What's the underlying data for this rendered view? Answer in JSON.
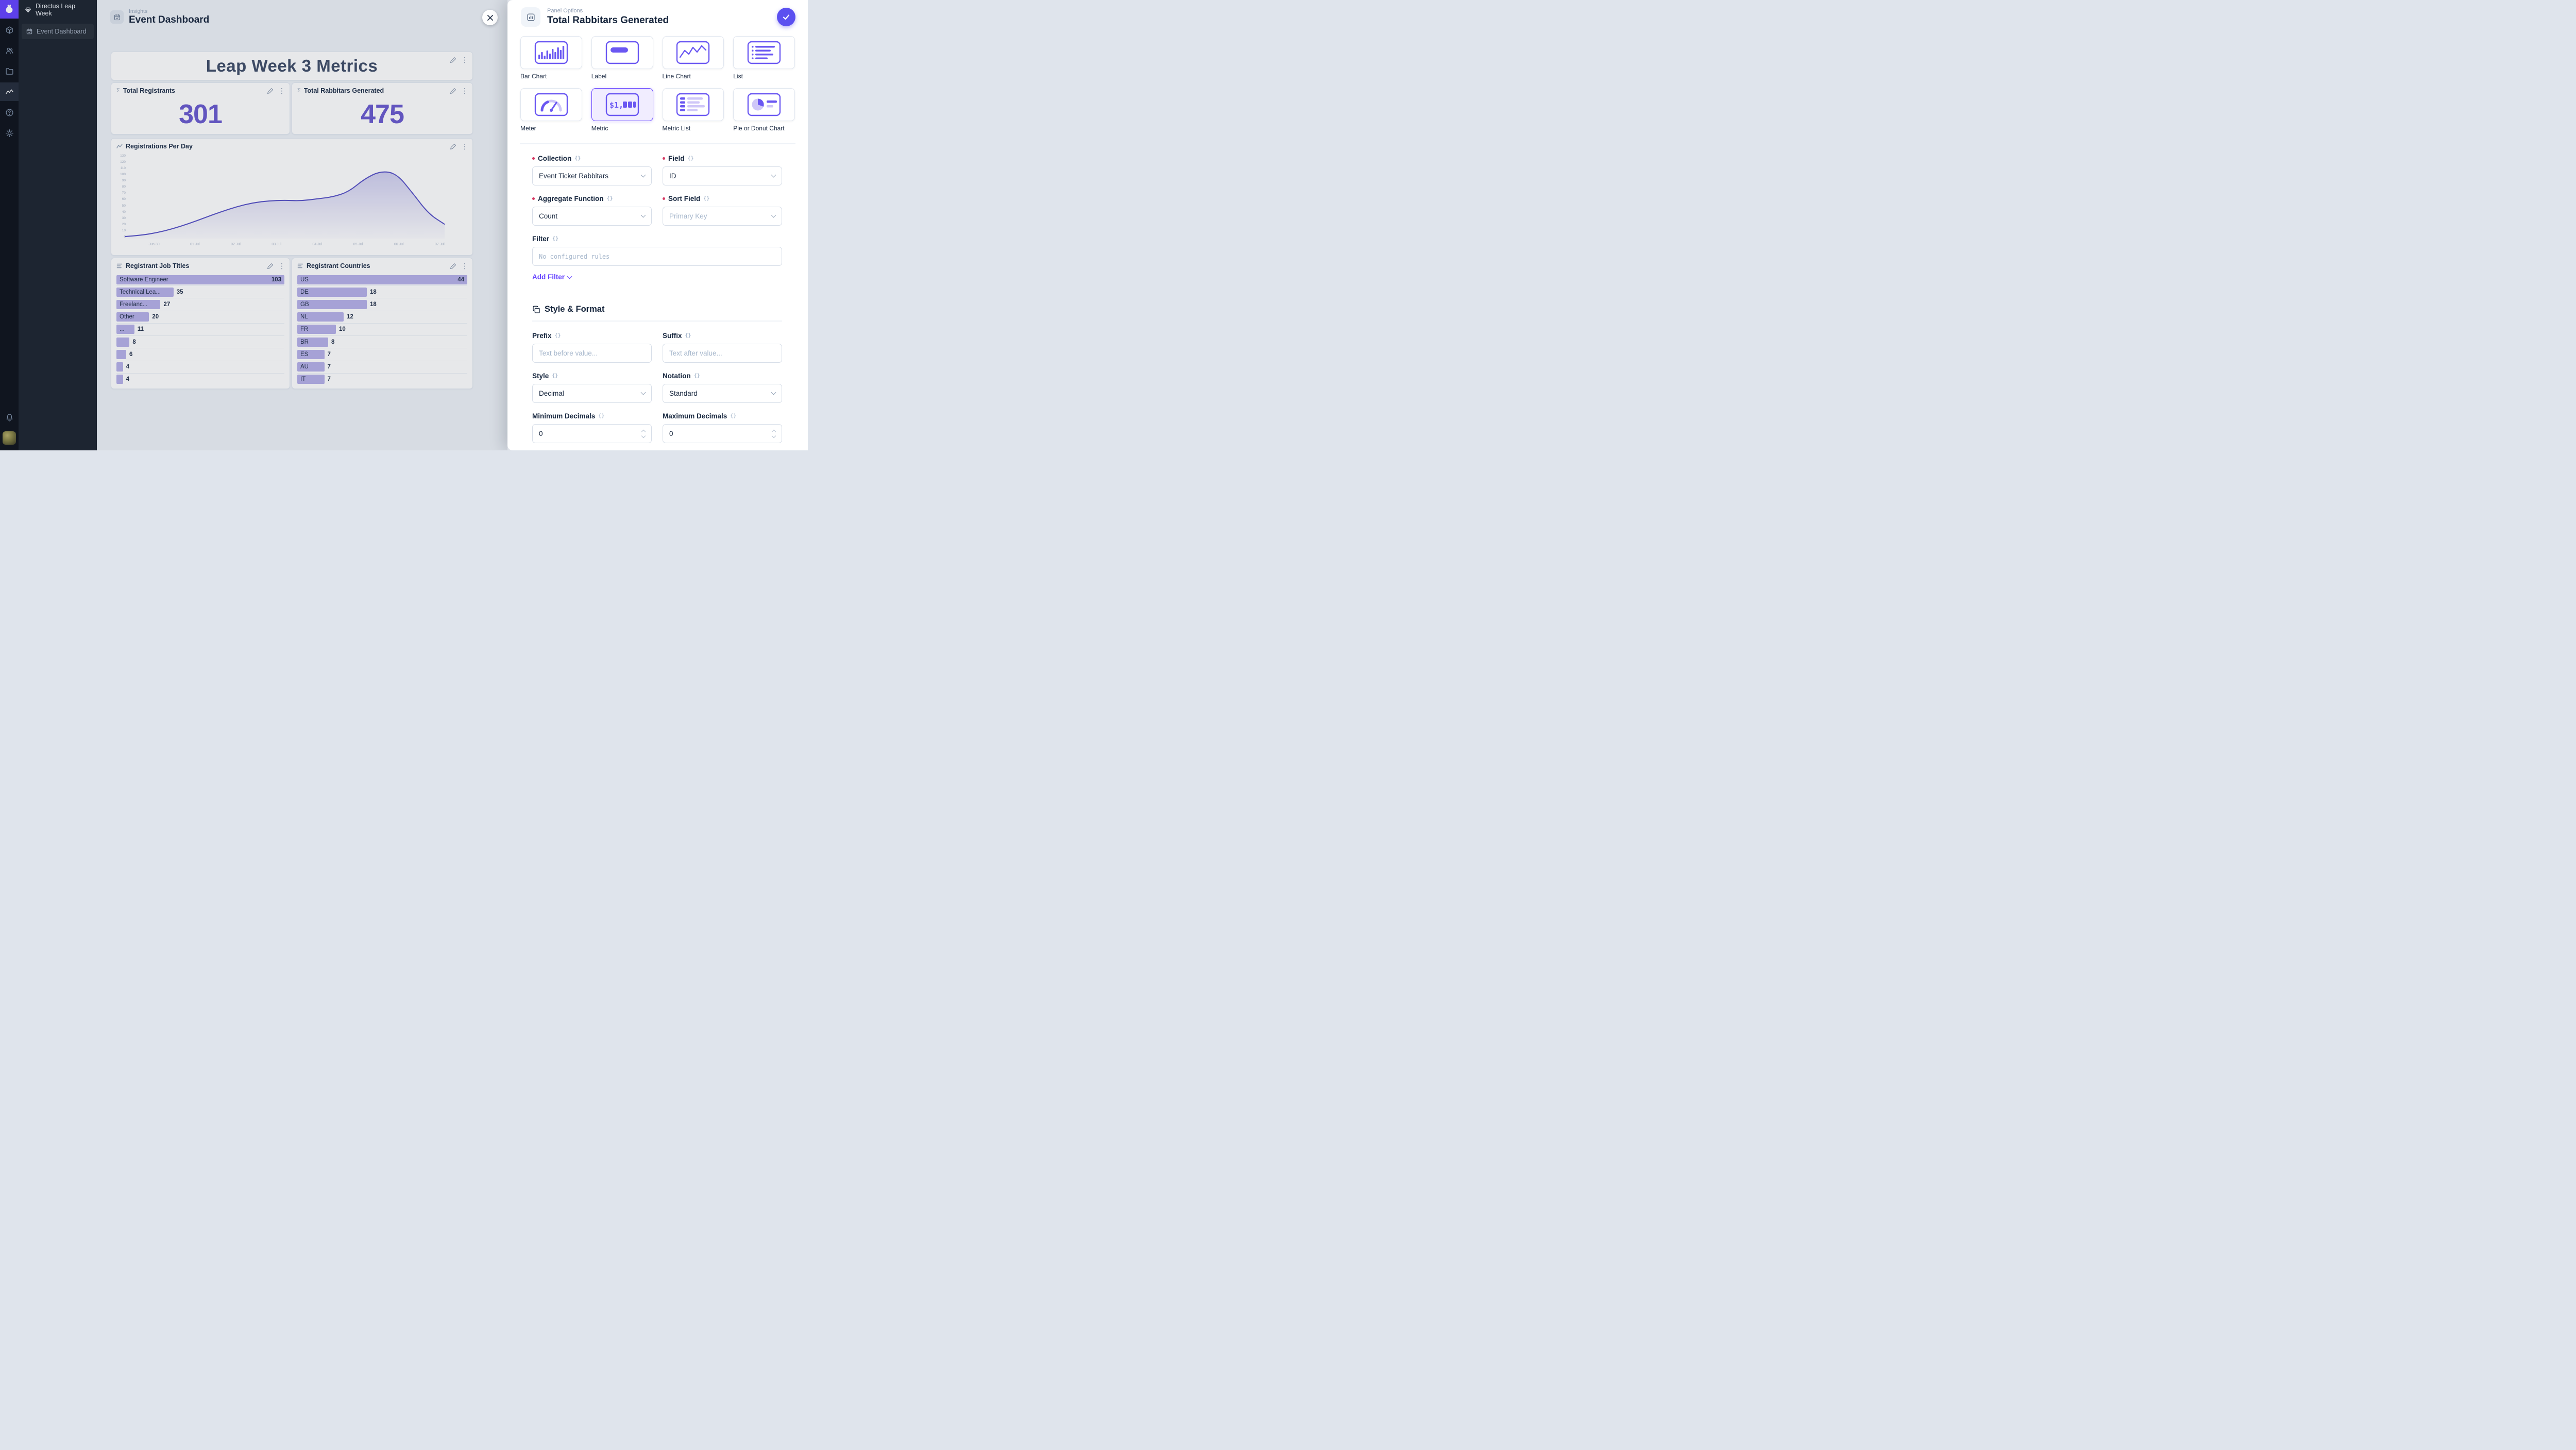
{
  "accent": "#6644ff",
  "module_bar": {
    "items": [
      {
        "name": "content-module",
        "icon": "box-icon",
        "active": false
      },
      {
        "name": "users-module",
        "icon": "users-icon",
        "active": false
      },
      {
        "name": "files-module",
        "icon": "folder-icon",
        "active": false
      },
      {
        "name": "insights-module",
        "icon": "insights-icon",
        "active": true
      },
      {
        "name": "docs-module",
        "icon": "help-icon",
        "active": false
      },
      {
        "name": "settings-module",
        "icon": "gear-icon",
        "active": false
      }
    ]
  },
  "nav": {
    "project_name": "Directus Leap Week",
    "items": [
      {
        "label": "Event Dashboard"
      }
    ]
  },
  "main": {
    "kicker": "Insights",
    "title": "Event Dashboard",
    "panels": {
      "headline": "Leap Week 3 Metrics",
      "registrants_title": "Total Registrants",
      "registrants_value": "301",
      "rabbitars_title": "Total Rabbitars Generated",
      "rabbitars_value": "475",
      "per_day_title": "Registrations Per Day",
      "job_titles_title": "Registrant Job Titles",
      "countries_title": "Registrant Countries"
    }
  },
  "chart_data": [
    {
      "type": "line",
      "title": "Registrations Per Day",
      "x_ticks": [
        "Jun 30",
        "01 Jul",
        "02 Jul",
        "03 Jul",
        "04 Jul",
        "05 Jul",
        "06 Jul",
        "07 Jul"
      ],
      "daily_values": {
        "Jun 30": 3,
        "01 Jul": 30,
        "02 Jul": 55,
        "03 Jul": 60,
        "04 Jul": 62,
        "05 Jul": 75,
        "06 Jul": 104,
        "07 Jul": 22
      },
      "curve": [
        3,
        5,
        9,
        15,
        23,
        32,
        41,
        49,
        55,
        58,
        59,
        58,
        61,
        64,
        72,
        92,
        104,
        100,
        70,
        38,
        22
      ],
      "ylim": [
        0,
        130
      ],
      "ytick_step": 10,
      "color": "#5a54c8",
      "legend": "none",
      "grid": "off"
    },
    {
      "type": "bar",
      "title": "Registrant Job Titles",
      "orientation": "horizontal",
      "rows": [
        {
          "label": "Software Engineer",
          "value": 103
        },
        {
          "label": "Technical Lea...",
          "value": 35
        },
        {
          "label": "Freelanc...",
          "value": 27
        },
        {
          "label": "Other",
          "value": 20
        },
        {
          "label": "...",
          "value": 11
        },
        {
          "label": "",
          "value": 8
        },
        {
          "label": "",
          "value": 6
        },
        {
          "label": "",
          "value": 4
        },
        {
          "label": "",
          "value": 4
        }
      ],
      "bar_color": "#b7b2e9"
    },
    {
      "type": "bar",
      "title": "Registrant Countries",
      "orientation": "horizontal",
      "rows": [
        {
          "label": "US",
          "value": 44
        },
        {
          "label": "DE",
          "value": 18
        },
        {
          "label": "GB",
          "value": 18
        },
        {
          "label": "NL",
          "value": 12
        },
        {
          "label": "FR",
          "value": 10
        },
        {
          "label": "BR",
          "value": 8
        },
        {
          "label": "ES",
          "value": 7
        },
        {
          "label": "AU",
          "value": 7
        },
        {
          "label": "IT",
          "value": 7
        }
      ],
      "bar_color": "#b7b2e9"
    },
    {
      "type": "metric",
      "title": "Total Registrants",
      "value": 301
    },
    {
      "type": "metric",
      "title": "Total Rabbitars Generated",
      "value": 475
    }
  ],
  "drawer": {
    "kicker": "Panel Options",
    "title": "Total Rabbitars Generated",
    "types": [
      {
        "label": "Bar Chart",
        "icon": "bar-chart",
        "selected": false
      },
      {
        "label": "Label",
        "icon": "label",
        "selected": false
      },
      {
        "label": "Line Chart",
        "icon": "line-chart",
        "selected": false
      },
      {
        "label": "List",
        "icon": "list",
        "selected": false
      },
      {
        "label": "Meter",
        "icon": "meter",
        "selected": false
      },
      {
        "label": "Metric",
        "icon": "metric",
        "selected": true
      },
      {
        "label": "Metric List",
        "icon": "metric-list",
        "selected": false
      },
      {
        "label": "Pie or Donut Chart",
        "icon": "pie-donut",
        "selected": false
      }
    ],
    "form": {
      "collection": {
        "label": "Collection",
        "value": "Event Ticket Rabbitars",
        "required": true
      },
      "field": {
        "label": "Field",
        "value": "ID",
        "required": true
      },
      "aggregate": {
        "label": "Aggregate Function",
        "value": "Count",
        "required": true
      },
      "sort_field": {
        "label": "Sort Field",
        "placeholder": "Primary Key",
        "required": true
      },
      "filter": {
        "label": "Filter",
        "empty_text": "No configured rules",
        "add_label": "Add Filter"
      },
      "section_title": "Style & Format",
      "prefix": {
        "label": "Prefix",
        "placeholder": "Text before value..."
      },
      "suffix": {
        "label": "Suffix",
        "placeholder": "Text after value..."
      },
      "style": {
        "label": "Style",
        "value": "Decimal"
      },
      "notation": {
        "label": "Notation",
        "value": "Standard"
      },
      "min_decimals": {
        "label": "Minimum Decimals",
        "value": "0"
      },
      "max_decimals": {
        "label": "Maximum Decimals",
        "value": "0"
      }
    }
  }
}
